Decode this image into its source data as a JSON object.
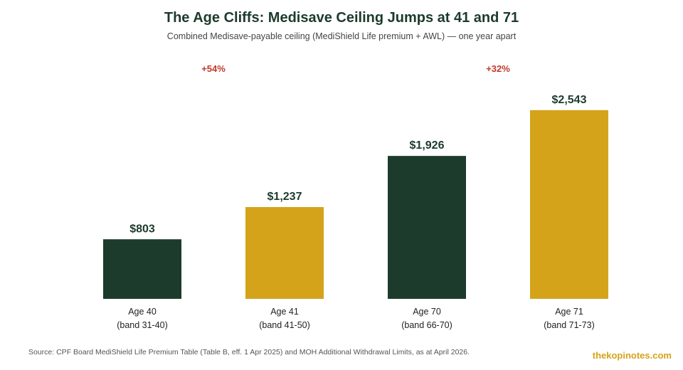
{
  "title": "The Age Cliffs: Medisave Ceiling Jumps at 41 and 71",
  "subtitle": "Combined Medisave-payable ceiling (MediShield Life premium + AWL) — one year apart",
  "source": "Source: CPF Board MediShield Life Premium Table (Table B, eff. 1 Apr 2025) and MOH Additional Withdrawal Limits, as at April 2026.",
  "brand": "thekopinotes.com",
  "colors": {
    "dark": "#1c3b2c",
    "gold": "#d4a31a",
    "accent": "#c0392b"
  },
  "chart_data": {
    "type": "bar",
    "title": "The Age Cliffs: Medisave Ceiling Jumps at 41 and 71",
    "subtitle": "Combined Medisave-payable ceiling (MediShield Life premium + AWL) — one year apart",
    "categories": [
      "Age 40",
      "Age 41",
      "Age 70",
      "Age 71"
    ],
    "category_sublabels": [
      "(band 31-40)",
      "(band 41-50)",
      "(band 66-70)",
      "(band 71-73)"
    ],
    "values": [
      803,
      1237,
      1926,
      2543
    ],
    "value_labels": [
      "$803",
      "$1,237",
      "$1,926",
      "$2,543"
    ],
    "bar_colors": [
      "#1c3b2c",
      "#d4a31a",
      "#1c3b2c",
      "#d4a31a"
    ],
    "annotations": [
      {
        "text": "+54%",
        "between": [
          0,
          1
        ]
      },
      {
        "text": "+32%",
        "between": [
          2,
          3
        ]
      }
    ],
    "ylim": [
      0,
      2800
    ],
    "grid": false,
    "legend": "none"
  }
}
